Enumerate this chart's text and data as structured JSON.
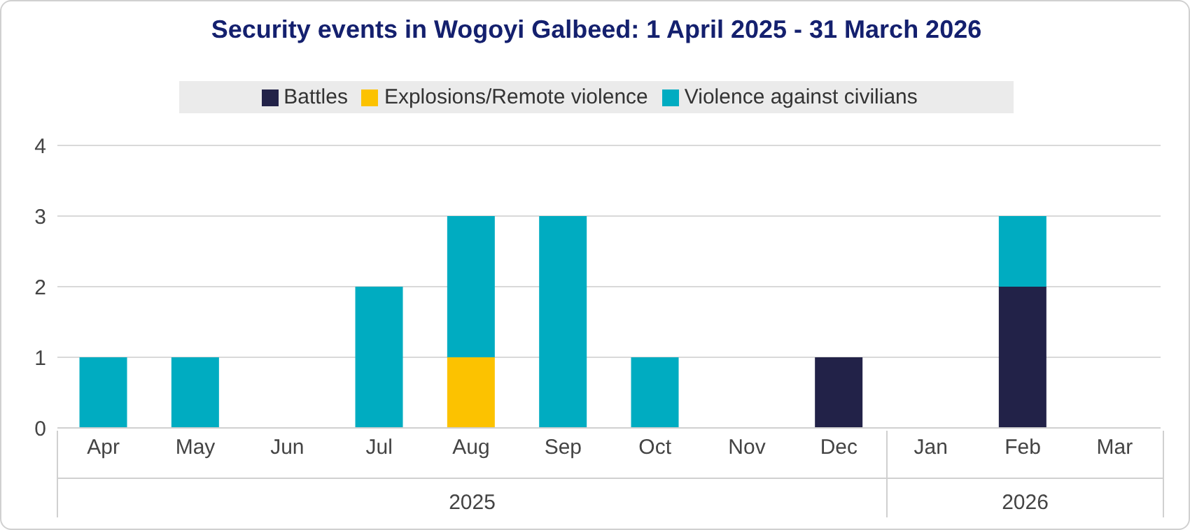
{
  "chart_data": {
    "type": "bar",
    "title": "Security events in Wogoyi Galbeed: 1 April 2025 - 31 March 2026",
    "categories": [
      "Apr",
      "May",
      "Jun",
      "Jul",
      "Aug",
      "Sep",
      "Oct",
      "Nov",
      "Dec",
      "Jan",
      "Feb",
      "Mar"
    ],
    "series": [
      {
        "name": "Battles",
        "color": "#222248",
        "values": [
          0,
          0,
          0,
          0,
          0,
          0,
          0,
          0,
          1,
          0,
          2,
          0
        ]
      },
      {
        "name": "Explosions/Remote violence",
        "color": "#fcc200",
        "values": [
          0,
          0,
          0,
          0,
          1,
          0,
          0,
          0,
          0,
          0,
          0,
          0
        ]
      },
      {
        "name": "Violence against civilians",
        "color": "#00acc1",
        "values": [
          1,
          1,
          0,
          2,
          2,
          3,
          1,
          0,
          0,
          0,
          1,
          0
        ]
      }
    ],
    "annotations": [
      "2025",
      "2026"
    ],
    "stacked": true,
    "ylim": [
      0,
      4
    ],
    "yticks": [
      0,
      1,
      2,
      3,
      4
    ],
    "grid": "y",
    "legend": "top"
  }
}
